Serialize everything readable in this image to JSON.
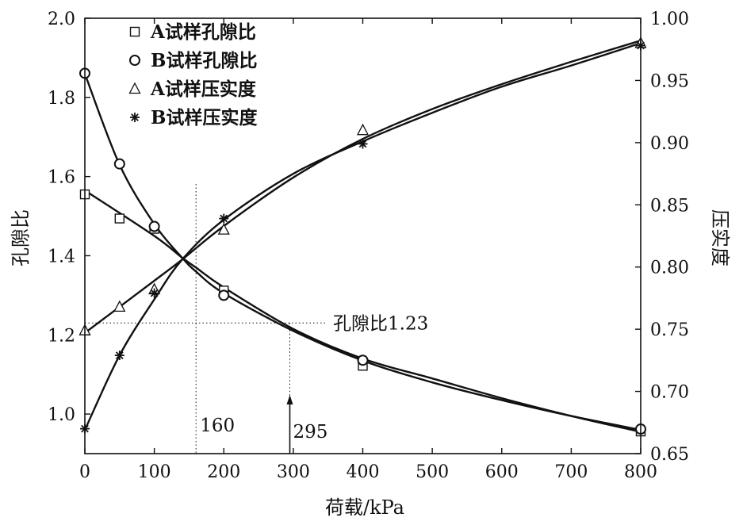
{
  "chart_data": {
    "type": "line",
    "xlabel": "荷载/kPa",
    "ylabel_left": "孔隙比",
    "ylabel_right": "压实度",
    "x_ticks": [
      "0",
      "100",
      "200",
      "300",
      "400",
      "500",
      "600",
      "700",
      "800"
    ],
    "y_left_ticks": [
      "1.0",
      "1.2",
      "1.4",
      "1.6",
      "1.8",
      "2.0"
    ],
    "y_right_ticks": [
      "0.65",
      "0.70",
      "0.75",
      "0.80",
      "0.85",
      "0.90",
      "0.95",
      "1.00"
    ],
    "xlim": [
      0,
      800
    ],
    "ylim_left": [
      0.9,
      2.0
    ],
    "ylim_right": [
      0.65,
      1.0
    ],
    "grid": false,
    "legend_position": "top-left",
    "series": [
      {
        "name": "A试样孔隙比",
        "axis": "left",
        "marker": "square",
        "x": [
          0,
          50,
          100,
          200,
          400,
          800
        ],
        "y": [
          1.555,
          1.494,
          1.468,
          1.312,
          1.122,
          0.956
        ]
      },
      {
        "name": "B试样孔隙比",
        "axis": "left",
        "marker": "circle",
        "x": [
          0,
          50,
          100,
          200,
          400,
          800
        ],
        "y": [
          1.861,
          1.632,
          1.474,
          1.3,
          1.136,
          0.962
        ]
      },
      {
        "name": "A试样压实度",
        "axis": "right",
        "marker": "triangle",
        "x": [
          0,
          50,
          100,
          200,
          400,
          800
        ],
        "y": [
          0.749,
          0.768,
          0.782,
          0.83,
          0.91,
          0.98
        ]
      },
      {
        "name": "B试样压实度",
        "axis": "right",
        "marker": "asterisk",
        "x": [
          0,
          50,
          100,
          200,
          400,
          800
        ],
        "y": [
          0.67,
          0.729,
          0.779,
          0.839,
          0.899,
          0.978
        ]
      }
    ],
    "fit_curves": [
      {
        "axis": "left",
        "x": [
          0,
          100,
          140,
          160,
          200,
          300,
          400,
          500,
          600,
          700,
          800
        ],
        "y": [
          1.565,
          1.45,
          1.395,
          1.37,
          1.32,
          1.215,
          1.14,
          1.09,
          1.04,
          0.995,
          0.955
        ]
      },
      {
        "axis": "left",
        "x": [
          0,
          50,
          100,
          140,
          160,
          200,
          300,
          400,
          500,
          600,
          700,
          800
        ],
        "y": [
          1.86,
          1.63,
          1.48,
          1.395,
          1.36,
          1.305,
          1.21,
          1.135,
          1.08,
          1.035,
          0.995,
          0.96
        ]
      },
      {
        "axis": "right",
        "x": [
          0,
          50,
          100,
          140,
          200,
          300,
          400,
          500,
          600,
          700,
          800
        ],
        "y": [
          0.747,
          0.768,
          0.789,
          0.806,
          0.833,
          0.872,
          0.903,
          0.927,
          0.947,
          0.965,
          0.982
        ]
      },
      {
        "axis": "right",
        "x": [
          0,
          50,
          100,
          140,
          200,
          300,
          400,
          500,
          600,
          700,
          800
        ],
        "y": [
          0.669,
          0.729,
          0.774,
          0.806,
          0.838,
          0.875,
          0.901,
          0.924,
          0.945,
          0.962,
          0.98
        ]
      }
    ],
    "annotations": [
      {
        "text": "孔隙比1.23",
        "y_left": 1.23
      },
      {
        "text": "160",
        "x": 160
      },
      {
        "text": "295",
        "x": 295
      }
    ]
  }
}
